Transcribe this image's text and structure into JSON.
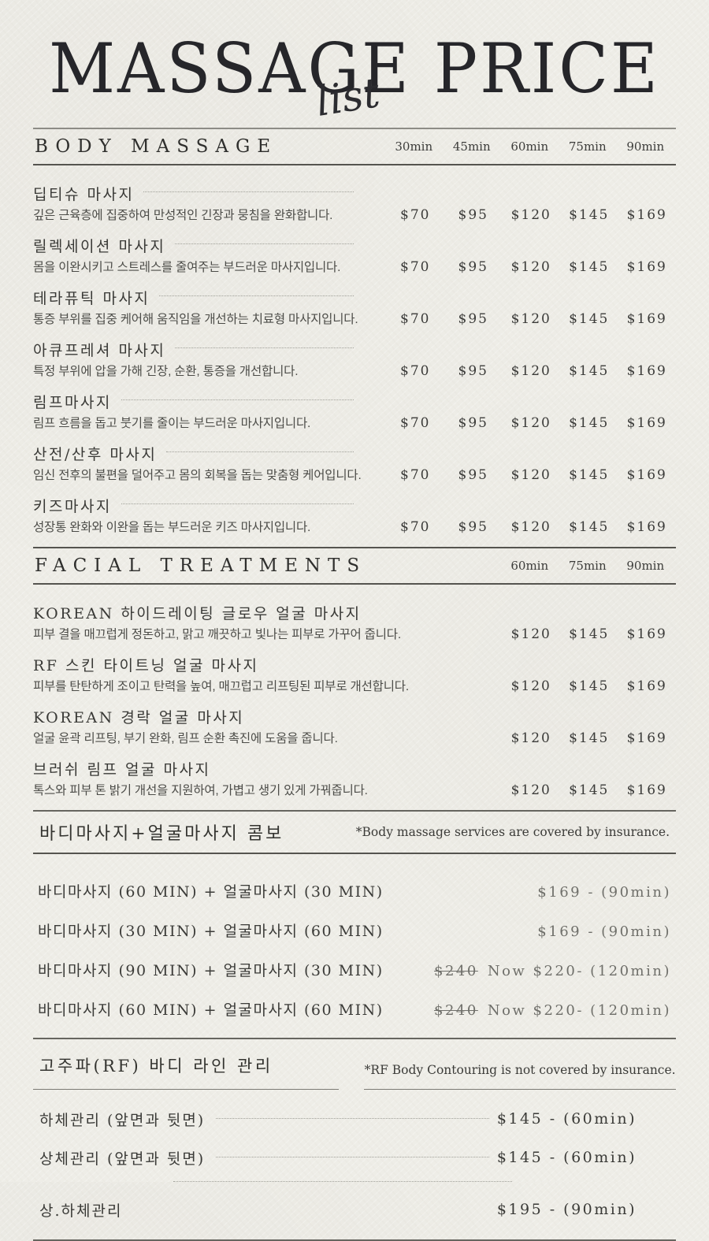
{
  "colors": {
    "paper": "#eeede7",
    "ink": "#26262a",
    "muted": "#6f6f6a"
  },
  "header": {
    "title": "MASSAGE PRICE",
    "script": "list"
  },
  "body_massage": {
    "heading": "BODY MASSAGE",
    "columns": [
      "30min",
      "45min",
      "60min",
      "75min",
      "90min"
    ],
    "items": [
      {
        "name": "딥티슈 마사지",
        "desc": "깊은 근육층에 집중하여 만성적인 긴장과 뭉침을 완화합니다.",
        "prices": [
          "$70",
          "$95",
          "$120",
          "$145",
          "$169"
        ]
      },
      {
        "name": "릴렉세이션 마사지",
        "desc": "몸을 이완시키고 스트레스를 줄여주는 부드러운 마사지입니다.",
        "prices": [
          "$70",
          "$95",
          "$120",
          "$145",
          "$169"
        ]
      },
      {
        "name": "테라퓨틱 마사지",
        "desc": "통증 부위를 집중 케어해 움직임을 개선하는 치료형 마사지입니다.",
        "prices": [
          "$70",
          "$95",
          "$120",
          "$145",
          "$169"
        ]
      },
      {
        "name": "아큐프레셔 마사지",
        "desc": "특정 부위에 압을 가해 긴장, 순환, 통증을 개선합니다.",
        "prices": [
          "$70",
          "$95",
          "$120",
          "$145",
          "$169"
        ]
      },
      {
        "name": "림프마사지",
        "desc": "림프 흐름을 돕고 붓기를 줄이는 부드러운 마사지입니다.",
        "prices": [
          "$70",
          "$95",
          "$120",
          "$145",
          "$169"
        ]
      },
      {
        "name": "산전/산후 마사지",
        "desc": "임신 전후의 불편을 덜어주고 몸의 회복을 돕는 맞춤형 케어입니다.",
        "prices": [
          "$70",
          "$95",
          "$120",
          "$145",
          "$169"
        ]
      },
      {
        "name": "키즈마사지",
        "desc": "성장통 완화와 이완을 돕는 부드러운 키즈 마사지입니다.",
        "prices": [
          "$70",
          "$95",
          "$120",
          "$145",
          "$169"
        ]
      }
    ]
  },
  "facial": {
    "heading": "FACIAL TREATMENTS",
    "columns": [
      "60min",
      "75min",
      "90min"
    ],
    "items": [
      {
        "name": "KOREAN 하이드레이팅 글로우 얼굴 마사지",
        "desc": "피부 결을 매끄럽게 정돈하고, 맑고 깨끗하고 빛나는 피부로 가꾸어 줍니다.",
        "prices": [
          "$120",
          "$145",
          "$169"
        ]
      },
      {
        "name": "RF 스킨 타이트닝 얼굴 마사지",
        "desc": "피부를 탄탄하게 조이고 탄력을 높여, 매끄럽고 리프팅된 피부로 개선합니다.",
        "prices": [
          "$120",
          "$145",
          "$169"
        ]
      },
      {
        "name": "KOREAN 경락 얼굴 마사지",
        "desc": "얼굴 윤곽 리프팅, 부기 완화, 림프 순환 촉진에 도움을 줍니다.",
        "prices": [
          "$120",
          "$145",
          "$169"
        ]
      },
      {
        "name": "브러쉬 림프 얼굴 마사지",
        "desc": "톡스와 피부 톤 밝기 개선을 지원하여, 가볍고 생기 있게 가꿔줍니다.",
        "prices": [
          "$120",
          "$145",
          "$169"
        ]
      }
    ]
  },
  "combo": {
    "heading": "바디마사지+얼굴마사지 콤보",
    "note": "*Body massage services are covered by insurance.",
    "items": [
      {
        "name": "바디마사지 (60 MIN) + 얼굴마사지 (30 MIN)",
        "old_price": "",
        "price": "$169 - (90min)"
      },
      {
        "name": "바디마사지 (30 MIN) + 얼굴마사지 (60 MIN)",
        "old_price": "",
        "price": "$169 - (90min)"
      },
      {
        "name": "바디마사지 (90 MIN) + 얼굴마사지 (30 MIN)",
        "old_price": "$240",
        "price": "Now $220- (120min)"
      },
      {
        "name": "바디마사지 (60 MIN) + 얼굴마사지 (60 MIN)",
        "old_price": "$240",
        "price": "Now $220- (120min)"
      }
    ]
  },
  "rf": {
    "heading": "고주파(RF) 바디 라인 관리",
    "note": "*RF Body Contouring is not covered by insurance.",
    "items": [
      {
        "name": "하체관리 (앞면과 뒷면)",
        "price": "$145 - (60min)"
      },
      {
        "name": "상체관리 (앞면과 뒷면)",
        "price": "$145 - (60min)"
      },
      {
        "name": "상.하체관리",
        "price": "$195 - (90min)"
      }
    ]
  }
}
